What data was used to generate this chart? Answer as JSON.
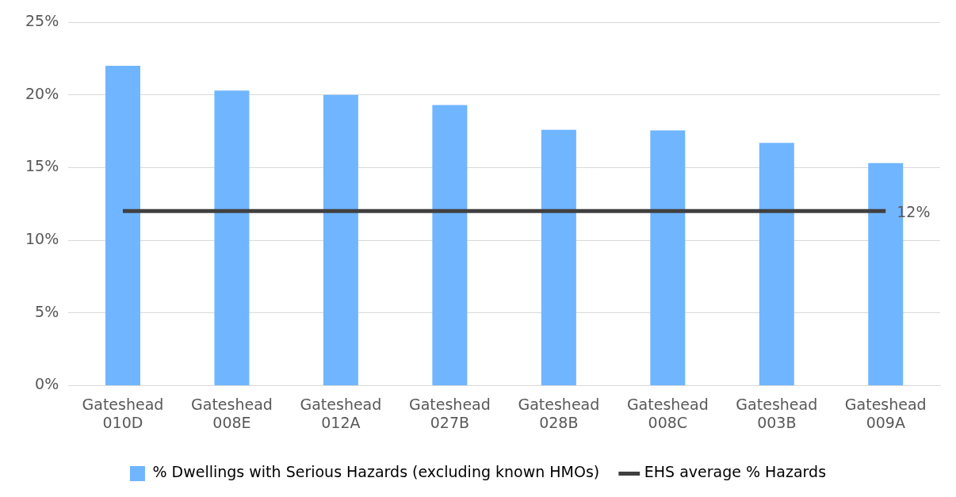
{
  "chart_data": {
    "type": "bar",
    "categories": [
      "Gateshead 010D",
      "Gateshead 008E",
      "Gateshead 012A",
      "Gateshead 027B",
      "Gateshead 028B",
      "Gateshead 008C",
      "Gateshead 003B",
      "Gateshead 009A"
    ],
    "series": [
      {
        "name": "% Dwellings with Serious Hazards (excluding known HMOs)",
        "color": "#70b5ff",
        "values": [
          22.0,
          20.3,
          20.0,
          19.3,
          17.6,
          17.55,
          16.7,
          15.3
        ]
      },
      {
        "name": "EHS average % Hazards",
        "type": "line",
        "color": "#404040",
        "values": [
          12,
          12,
          12,
          12,
          12,
          12,
          12,
          12
        ],
        "value_labels": [
          null,
          null,
          null,
          null,
          null,
          null,
          null,
          "12%"
        ]
      }
    ],
    "ylim": [
      0,
      25
    ],
    "yticks": [
      {
        "value": 0,
        "label": "0%"
      },
      {
        "value": 5,
        "label": "5%"
      },
      {
        "value": 10,
        "label": "10%"
      },
      {
        "value": 15,
        "label": "15%"
      },
      {
        "value": 20,
        "label": "20%"
      },
      {
        "value": 25,
        "label": "25%"
      }
    ],
    "grid": "y",
    "legend": "bottom",
    "marker": "none"
  }
}
